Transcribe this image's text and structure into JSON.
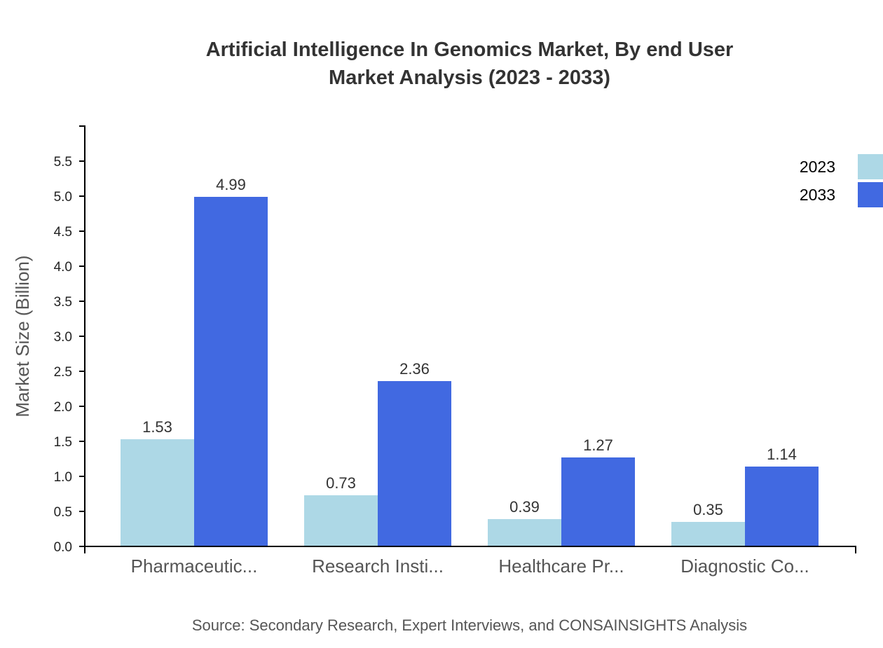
{
  "chart_data": {
    "type": "bar",
    "title_lines": [
      "Artificial Intelligence In Genomics Market, By end User",
      "Market Analysis (2023 - 2033)"
    ],
    "xlabel": "",
    "ylabel": "Market Size (Billion)",
    "ylim": [
      0,
      6.0
    ],
    "yticks": [
      "0.0",
      "0.5",
      "1.0",
      "1.5",
      "2.0",
      "2.5",
      "3.0",
      "3.5",
      "4.0",
      "4.5",
      "5.0",
      "5.5"
    ],
    "categories": [
      "Pharmaceutic...",
      "Research Insti...",
      "Healthcare Pr...",
      "Diagnostic Co..."
    ],
    "series": [
      {
        "name": "2023",
        "color": "#add8e6",
        "values": [
          1.53,
          0.73,
          0.39,
          0.35
        ]
      },
      {
        "name": "2033",
        "color": "#4169e1",
        "values": [
          4.99,
          2.36,
          1.27,
          1.14
        ]
      }
    ],
    "legend_position": "top-right",
    "grid": false,
    "source": "Source: Secondary Research, Expert Interviews, and CONSAINSIGHTS Analysis"
  }
}
